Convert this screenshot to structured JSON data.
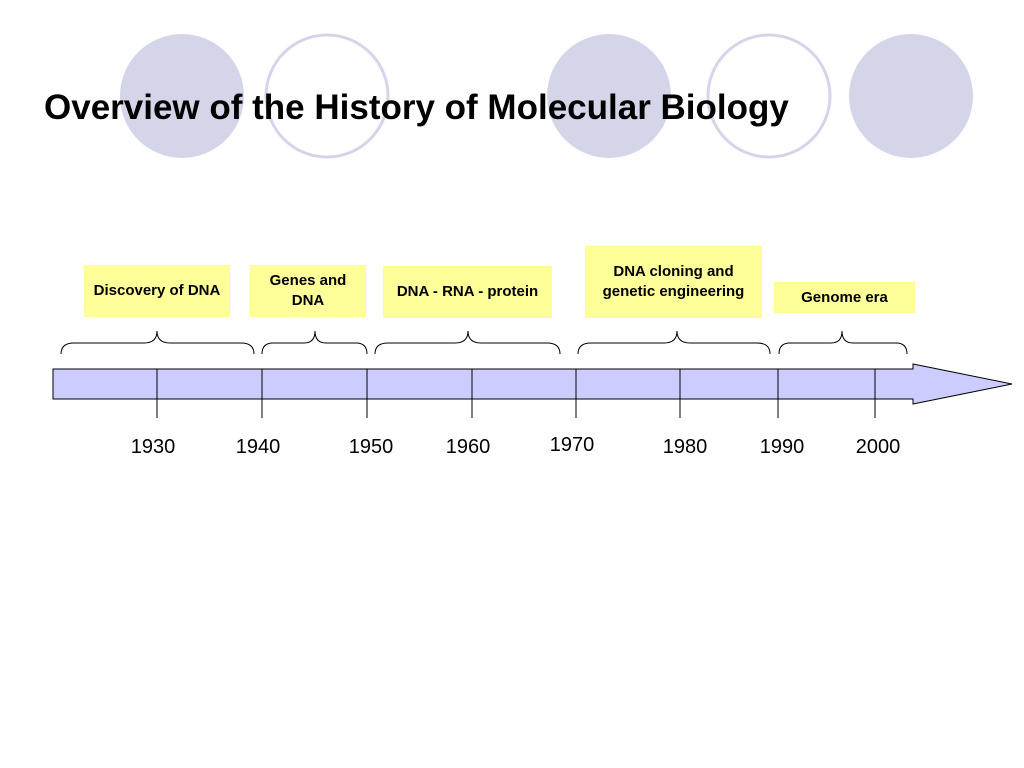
{
  "title": "Overview of the History of Molecular Biology",
  "eras": [
    "Discovery of DNA",
    "Genes and DNA",
    "DNA  - RNA - protein",
    "DNA  cloning and genetic engineering",
    "Genome era"
  ],
  "years": [
    "1930",
    "1940",
    "1950",
    "1960",
    "1970",
    "1980",
    "1990",
    "2000"
  ],
  "colors": {
    "circle_fill": "#d5d5ea",
    "circle_outline": "#d5d5ea",
    "timeline_fill": "#ccccff",
    "era_box_fill": "#ffff99",
    "stroke": "#000000"
  }
}
